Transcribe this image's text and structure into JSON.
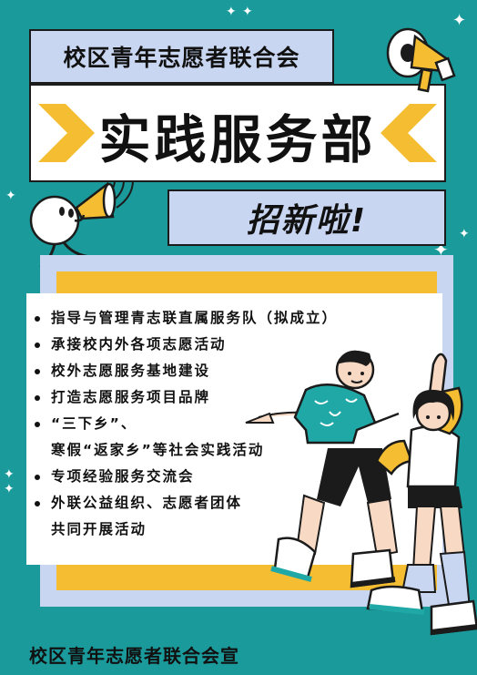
{
  "header": {
    "org_name": "校区青年志愿者联合会",
    "department": "实践服务部",
    "recruit": "招新啦!"
  },
  "items": [
    {
      "text": "指导与管理青志联直属服务队（拟成立）",
      "bullet": true
    },
    {
      "text": "承接校内外各项志愿活动",
      "bullet": true
    },
    {
      "text": "校外志愿服务基地建设",
      "bullet": true
    },
    {
      "text": "打造志愿服务项目品牌",
      "bullet": true
    },
    {
      "text": "“三下乡”、",
      "bullet": true
    },
    {
      "text": "寒假“返家乡”等社会实践活动",
      "bullet": false
    },
    {
      "text": "专项经验服务交流会",
      "bullet": true
    },
    {
      "text": "外联公益组织、志愿者团体",
      "bullet": true
    },
    {
      "text": "共同开展活动",
      "bullet": false
    }
  ],
  "footer": {
    "text": "校区青年志愿者联合会宣"
  },
  "colors": {
    "background": "#1b9a9b",
    "lavender": "#c9d6f2",
    "yellow": "#f4bd32",
    "ink": "#1b1b1b"
  },
  "icons": [
    "megaphone-icon",
    "mascot-with-megaphone",
    "sparkle-icon",
    "chevron-icon",
    "students-illustration"
  ]
}
